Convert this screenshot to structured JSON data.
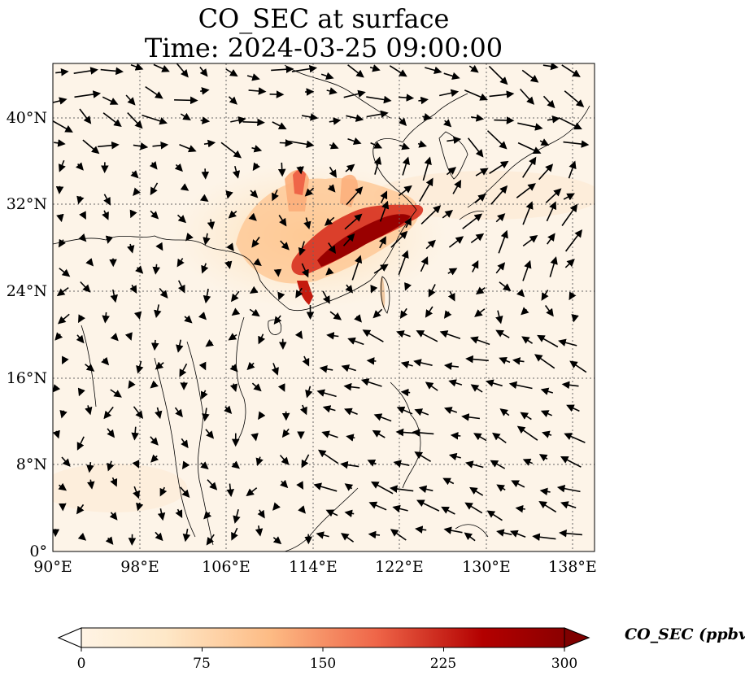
{
  "title": {
    "line1": "CO_SEC at surface",
    "line2": "Time: 2024-03-25 09:00:00"
  },
  "map": {
    "lon_range": [
      90,
      140
    ],
    "lat_range": [
      0,
      45
    ],
    "lon_ticks": [
      "90°E",
      "98°E",
      "106°E",
      "114°E",
      "122°E",
      "130°E",
      "138°E"
    ],
    "lat_ticks": [
      "0°",
      "8°N",
      "16°N",
      "24°N",
      "32°N",
      "40°N"
    ],
    "grid": "dotted",
    "field_colormap": "OrRd",
    "vector_field": "wind arrows"
  },
  "colorbar": {
    "label": "CO_SEC (ppbv)",
    "ticks": [
      "0",
      "75",
      "150",
      "225",
      "300"
    ],
    "range": [
      0,
      300
    ],
    "extend": "both"
  },
  "colors": {
    "low": "#fff7ec",
    "mid": "#fdbb84",
    "high": "#b30000",
    "max": "#7f0000"
  }
}
